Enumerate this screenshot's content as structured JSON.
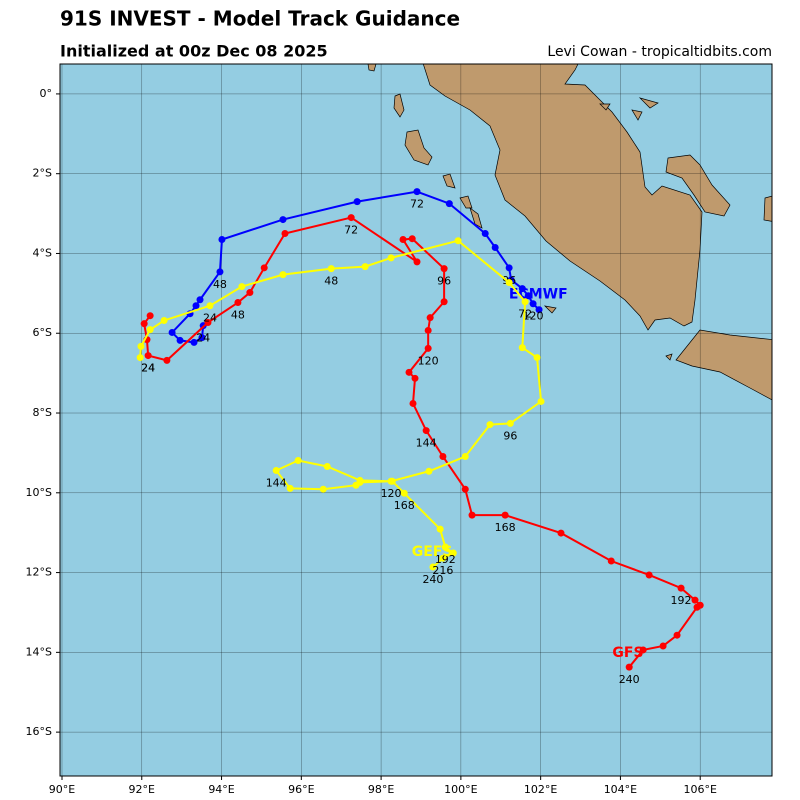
{
  "chart_data": {
    "type": "map",
    "title": "91S INVEST - Model Track Guidance",
    "subtitle": "Initialized at 00z Dec 08 2025",
    "credit": "Levi Cowan - tropicaltidbits.com",
    "xlim": [
      89.95,
      107.8
    ],
    "ylim": [
      -17.1,
      0.75
    ],
    "xticks": [
      {
        "value": 90,
        "label": "90°E"
      },
      {
        "value": 92,
        "label": "92°E"
      },
      {
        "value": 94,
        "label": "94°E"
      },
      {
        "value": 96,
        "label": "96°E"
      },
      {
        "value": 98,
        "label": "98°E"
      },
      {
        "value": 100,
        "label": "100°E"
      },
      {
        "value": 102,
        "label": "102°E"
      },
      {
        "value": 104,
        "label": "104°E"
      },
      {
        "value": 106,
        "label": "106°E"
      }
    ],
    "yticks": [
      {
        "value": 0,
        "label": "0°"
      },
      {
        "value": -2,
        "label": "2°S"
      },
      {
        "value": -4,
        "label": "4°S"
      },
      {
        "value": -6,
        "label": "6°S"
      },
      {
        "value": -8,
        "label": "8°S"
      },
      {
        "value": -10,
        "label": "10°S"
      },
      {
        "value": -12,
        "label": "12°S"
      },
      {
        "value": -14,
        "label": "14°S"
      },
      {
        "value": -16,
        "label": "16°S"
      }
    ],
    "grid": true,
    "series": [
      {
        "name": "ECMWF",
        "color": "#0000ff",
        "name_lon": 101.94,
        "name_lat": -5.03,
        "lon": [
          93.54,
          93.51,
          93.31,
          92.96,
          92.76,
          93.21,
          93.36,
          93.46,
          93.96,
          94.01,
          95.54,
          97.4,
          98.9,
          99.71,
          100.61,
          100.86,
          101.21,
          101.26,
          101.54,
          101.69,
          101.81,
          101.96
        ],
        "lat": [
          -5.81,
          -6.11,
          -6.23,
          -6.18,
          -5.98,
          -5.51,
          -5.31,
          -5.16,
          -4.46,
          -3.65,
          -3.15,
          -2.7,
          -2.45,
          -2.75,
          -3.5,
          -3.85,
          -4.36,
          -4.66,
          -4.88,
          -5.06,
          -5.26,
          -5.41
        ],
        "labels": [
          {
            "text": 24,
            "lon": 93.54,
            "lat": -5.81
          },
          {
            "text": 48,
            "lon": 93.96,
            "lat": -4.46
          },
          {
            "text": 72,
            "lon": 98.9,
            "lat": -2.45
          },
          {
            "text": 96,
            "lon": 101.21,
            "lat": -4.36
          },
          {
            "text": 120,
            "lon": 101.81,
            "lat": -5.26
          }
        ]
      },
      {
        "name": "GFS",
        "color": "#ff0000",
        "name_lon": 104.19,
        "name_lat": -14.02,
        "lon": [
          92.21,
          92.06,
          92.13,
          92.16,
          92.63,
          93.66,
          94.41,
          94.71,
          95.07,
          95.59,
          97.25,
          98.9,
          98.55,
          98.78,
          99.58,
          99.58,
          99.23,
          99.18,
          99.18,
          98.7,
          98.85,
          98.8,
          99.13,
          99.55,
          100.11,
          100.28,
          101.11,
          102.51,
          103.77,
          104.72,
          105.52,
          105.87,
          106.0,
          105.92,
          105.42,
          105.07,
          104.57,
          104.22
        ],
        "lat": [
          -5.56,
          -5.76,
          -6.16,
          -6.56,
          -6.68,
          -5.73,
          -5.23,
          -4.98,
          -4.36,
          -3.5,
          -3.1,
          -4.21,
          -3.65,
          -3.63,
          -4.38,
          -5.21,
          -5.61,
          -5.93,
          -6.38,
          -6.98,
          -7.13,
          -7.76,
          -8.44,
          -9.09,
          -9.91,
          -10.56,
          -10.56,
          -11.01,
          -11.71,
          -12.06,
          -12.39,
          -12.69,
          -12.82,
          -12.87,
          -13.57,
          -13.84,
          -13.94,
          -14.37
        ],
        "labels": [
          {
            "text": 24,
            "lon": 92.16,
            "lat": -6.56
          },
          {
            "text": 48,
            "lon": 94.41,
            "lat": -5.23
          },
          {
            "text": 72,
            "lon": 97.25,
            "lat": -3.1
          },
          {
            "text": 96,
            "lon": 99.58,
            "lat": -4.38
          },
          {
            "text": 120,
            "lon": 99.18,
            "lat": -6.38
          },
          {
            "text": 144,
            "lon": 99.13,
            "lat": -8.44
          },
          {
            "text": 168,
            "lon": 101.11,
            "lat": -10.56
          },
          {
            "text": 192,
            "lon": 105.52,
            "lat": -12.39
          },
          {
            "text": 240,
            "lon": 104.22,
            "lat": -14.37
          }
        ]
      },
      {
        "name": "GEFS",
        "color": "#ffff00",
        "name_lon": 99.28,
        "name_lat": -11.49,
        "lon": [
          91.96,
          91.98,
          92.21,
          92.56,
          93.71,
          94.51,
          95.54,
          96.75,
          97.6,
          98.25,
          99.93,
          101.21,
          101.61,
          101.54,
          101.91,
          102.01,
          101.24,
          100.73,
          100.11,
          99.2,
          98.25,
          97.47,
          97.37,
          96.55,
          95.72,
          95.37,
          95.92,
          96.65,
          97.47,
          98.28,
          98.58,
          99.48,
          99.61,
          99.81,
          99.55,
          99.3
        ],
        "lat": [
          -6.61,
          -6.33,
          -5.91,
          -5.68,
          -5.31,
          -4.83,
          -4.53,
          -4.38,
          -4.33,
          -4.11,
          -3.68,
          -4.73,
          -5.21,
          -6.36,
          -6.61,
          -7.71,
          -8.26,
          -8.29,
          -9.09,
          -9.46,
          -9.71,
          -9.74,
          -9.81,
          -9.91,
          -9.89,
          -9.44,
          -9.19,
          -9.34,
          -9.69,
          -9.71,
          -10.01,
          -10.91,
          -11.36,
          -11.51,
          -11.64,
          -11.86
        ],
        "labels": [
          {
            "text": 24,
            "lon": 92.16,
            "lat": -6.56
          },
          {
            "text": 24,
            "lon": 93.71,
            "lat": -5.31
          },
          {
            "text": 48,
            "lon": 96.75,
            "lat": -4.38
          },
          {
            "text": 72,
            "lon": 101.61,
            "lat": -5.21
          },
          {
            "text": 96,
            "lon": 101.24,
            "lat": -8.26
          },
          {
            "text": 120,
            "lon": 98.25,
            "lat": -9.71
          },
          {
            "text": 144,
            "lon": 95.37,
            "lat": -9.44
          },
          {
            "text": 168,
            "lon": 98.58,
            "lat": -10.01
          },
          {
            "text": 192,
            "lon": 99.61,
            "lat": -11.36
          },
          {
            "text": 216,
            "lon": 99.55,
            "lat": -11.64
          },
          {
            "text": 240,
            "lon": 99.3,
            "lat": -11.86
          }
        ]
      }
    ]
  }
}
